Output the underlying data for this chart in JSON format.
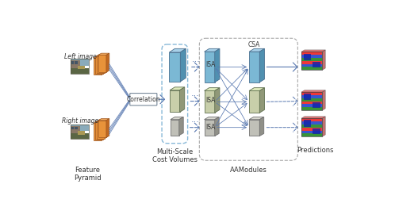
{
  "bg_color": "#ffffff",
  "labels": {
    "left_image": "Left image",
    "right_image": "Right image",
    "feature_pyramid": "Feature\nPyramid",
    "correlation": "Correlation",
    "multi_scale": "Multi-Scale\nCost Volumes",
    "aamodules": "AAModules",
    "predictions": "Predictions",
    "isa": "ISA",
    "csa": "CSA"
  },
  "colors": {
    "orange_face": "#E8933A",
    "orange_top": "#F0AA60",
    "orange_side": "#C06820",
    "blue_face": "#7BB8D4",
    "blue_top": "#A8D0E8",
    "blue_side": "#5090B0",
    "green_face": "#C8CFAA",
    "green_top": "#DEEABB",
    "green_side": "#909878",
    "gray_face": "#C0C0B8",
    "gray_top": "#D8D8D0",
    "gray_side": "#909088",
    "arrow": "#5878B0",
    "dashed_blue": "#88B8D8",
    "dashed_gray": "#AAAAAA",
    "white": "#FFFFFF",
    "text": "#333333"
  },
  "photo_left_top": {
    "sky": "#7AAABB",
    "bldg": "#887766",
    "road": "#667755",
    "car": "#AA8844"
  },
  "photo_left_bot": {
    "sky": "#7AAABB",
    "bldg": "#887766",
    "road": "#667755",
    "car": "#AA8844"
  }
}
